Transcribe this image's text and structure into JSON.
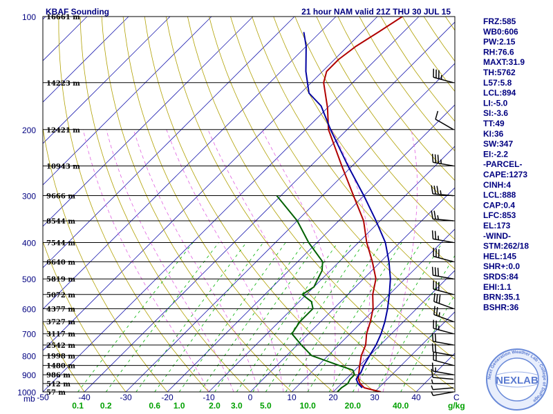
{
  "header": {
    "left_title": "KBAF Sounding",
    "right_title": "21 hour NAM valid 21Z THU 30 JUL 15"
  },
  "colors": {
    "temperature": "#b00000",
    "dewpoint": "#006000",
    "parcel": "#0000a0",
    "isotherm": "#2020b0",
    "dry_adiabat": "#b0a000",
    "moist_adiabat": "#e060e0",
    "mixing_ratio": "#00b000",
    "text": "#000080"
  },
  "chart_data": {
    "type": "line",
    "title": "KBAF Sounding",
    "subtitle": "21 hour NAM valid 21Z THU 30 JUL 15",
    "x_axis": {
      "unit_label": "C",
      "range": [
        -50,
        50
      ],
      "tick_labels": [
        "-50",
        "-40",
        "-30",
        "-20",
        "-10",
        "0",
        "10",
        "20",
        "30",
        "40"
      ],
      "tick_values": [
        -50,
        -40,
        -30,
        -20,
        -10,
        0,
        10,
        20,
        30,
        40
      ]
    },
    "y_axis": {
      "unit_label": "mb",
      "scale": "log",
      "range": [
        1000,
        100
      ],
      "labels": [
        "100",
        "200",
        "300",
        "400",
        "500",
        "600",
        "700",
        "800",
        "900",
        "1000"
      ],
      "label_values": [
        100,
        200,
        300,
        400,
        500,
        600,
        700,
        800,
        900,
        1000
      ]
    },
    "mixing_ratio_axis": {
      "unit_label": "g/kg",
      "labels": [
        "0.1",
        "0.2",
        "0.6",
        "1.0",
        "2.0",
        "3.0",
        "5.0",
        "10.0",
        "20.0",
        "40.0"
      ],
      "values": [
        0.1,
        0.2,
        0.6,
        1.0,
        2.0,
        3.0,
        5.0,
        10.0,
        20.0,
        40.0
      ]
    },
    "height_levels": [
      {
        "p": 100,
        "label": "16661 m"
      },
      {
        "p": 150,
        "label": "14223 m"
      },
      {
        "p": 200,
        "label": "12421 m"
      },
      {
        "p": 250,
        "label": "10943 m"
      },
      {
        "p": 300,
        "label": "9666 m"
      },
      {
        "p": 350,
        "label": "8544 m"
      },
      {
        "p": 400,
        "label": "7544 m"
      },
      {
        "p": 450,
        "label": "6640 m"
      },
      {
        "p": 500,
        "label": "5819 m"
      },
      {
        "p": 550,
        "label": "5072 m"
      },
      {
        "p": 600,
        "label": "4377 m"
      },
      {
        "p": 650,
        "label": "3727 m"
      },
      {
        "p": 700,
        "label": "3117 m"
      },
      {
        "p": 750,
        "label": "2542 m"
      },
      {
        "p": 800,
        "label": "1998 m"
      },
      {
        "p": 850,
        "label": "1480 m"
      },
      {
        "p": 900,
        "label": "986 m"
      },
      {
        "p": 950,
        "label": "512 m"
      },
      {
        "p": 1000,
        "label": "57 m"
      }
    ],
    "series": [
      {
        "key": "temperature",
        "points": [
          [
            1000,
            31.5
          ],
          [
            975,
            26.5
          ],
          [
            950,
            24.5
          ],
          [
            925,
            23
          ],
          [
            900,
            22
          ],
          [
            850,
            20
          ],
          [
            800,
            18
          ],
          [
            750,
            16.5
          ],
          [
            700,
            14
          ],
          [
            650,
            12
          ],
          [
            600,
            9.5
          ],
          [
            550,
            6
          ],
          [
            500,
            3
          ],
          [
            450,
            -2
          ],
          [
            400,
            -8
          ],
          [
            350,
            -14
          ],
          [
            300,
            -22.5
          ],
          [
            250,
            -32.5
          ],
          [
            200,
            -44.5
          ],
          [
            175,
            -50
          ],
          [
            150,
            -57
          ],
          [
            140,
            -59
          ],
          [
            130,
            -59
          ],
          [
            120,
            -58
          ],
          [
            110,
            -56
          ],
          [
            100,
            -54
          ]
        ]
      },
      {
        "key": "dewpoint",
        "points": [
          [
            1000,
            21
          ],
          [
            975,
            21
          ],
          [
            950,
            21.5
          ],
          [
            925,
            21
          ],
          [
            900,
            21
          ],
          [
            875,
            19.5
          ],
          [
            850,
            15
          ],
          [
            800,
            6
          ],
          [
            750,
            1
          ],
          [
            700,
            -4
          ],
          [
            650,
            -5
          ],
          [
            600,
            -5
          ],
          [
            575,
            -7
          ],
          [
            550,
            -11
          ],
          [
            525,
            -10
          ],
          [
            500,
            -11
          ],
          [
            475,
            -12
          ],
          [
            450,
            -14
          ],
          [
            400,
            -22
          ],
          [
            350,
            -30
          ],
          [
            300,
            -41
          ]
        ]
      },
      {
        "key": "parcel",
        "points": [
          [
            975,
            26
          ],
          [
            950,
            24
          ],
          [
            925,
            22.5
          ],
          [
            900,
            22
          ],
          [
            888,
            22
          ],
          [
            850,
            21
          ],
          [
            800,
            20
          ],
          [
            750,
            19
          ],
          [
            700,
            17.5
          ],
          [
            650,
            15.5
          ],
          [
            600,
            13
          ],
          [
            550,
            10
          ],
          [
            500,
            6.5
          ],
          [
            450,
            2
          ],
          [
            400,
            -3.5
          ],
          [
            350,
            -11
          ],
          [
            300,
            -20
          ],
          [
            250,
            -31
          ],
          [
            200,
            -44
          ],
          [
            173,
            -52
          ],
          [
            160,
            -58
          ],
          [
            140,
            -64
          ],
          [
            120,
            -70
          ],
          [
            110,
            -74
          ]
        ]
      }
    ],
    "winds": [
      {
        "p": 1000,
        "dir": 260,
        "spd": 5
      },
      {
        "p": 975,
        "dir": 265,
        "spd": 5
      },
      {
        "p": 950,
        "dir": 270,
        "spd": 5
      },
      {
        "p": 925,
        "dir": 275,
        "spd": 10
      },
      {
        "p": 900,
        "dir": 280,
        "spd": 15
      },
      {
        "p": 850,
        "dir": 285,
        "spd": 20
      },
      {
        "p": 800,
        "dir": 280,
        "spd": 20
      },
      {
        "p": 750,
        "dir": 280,
        "spd": 20
      },
      {
        "p": 700,
        "dir": 285,
        "spd": 25
      },
      {
        "p": 650,
        "dir": 290,
        "spd": 25
      },
      {
        "p": 600,
        "dir": 290,
        "spd": 30
      },
      {
        "p": 550,
        "dir": 285,
        "spd": 30
      },
      {
        "p": 500,
        "dir": 280,
        "spd": 30
      },
      {
        "p": 450,
        "dir": 285,
        "spd": 30
      },
      {
        "p": 400,
        "dir": 280,
        "spd": 25
      },
      {
        "p": 350,
        "dir": 275,
        "spd": 25
      },
      {
        "p": 300,
        "dir": 275,
        "spd": 35
      },
      {
        "p": 250,
        "dir": 280,
        "spd": 35
      },
      {
        "p": 200,
        "dir": 300,
        "spd": 10
      },
      {
        "p": 150,
        "dir": 285,
        "spd": 35
      }
    ]
  },
  "indices": [
    "FRZ:585",
    "WB0:606",
    "PW:2.15",
    "RH:76.6",
    "MAXT:31.9",
    "TH:5762",
    "L57:5.8",
    "LCL:894",
    "LI:-5.0",
    "SI:-3.6",
    "TT:49",
    "KI:36",
    "SW:347",
    "EI:-2.2",
    "-PARCEL-",
    "CAPE:1273",
    "CINH:4",
    "LCL:888",
    "CAP:0.4",
    "LFC:853",
    "EL:173",
    "-WIND-",
    "STM:262/18",
    "HEL:145",
    "SHR+:0.0",
    "SRDS:84",
    "EHI:1.1",
    "BRN:35.1",
    "BSHR:36"
  ],
  "logo": {
    "text": "NEXLAB",
    "ring_text": "Next Generation Weather Lab · College of DuPage"
  }
}
